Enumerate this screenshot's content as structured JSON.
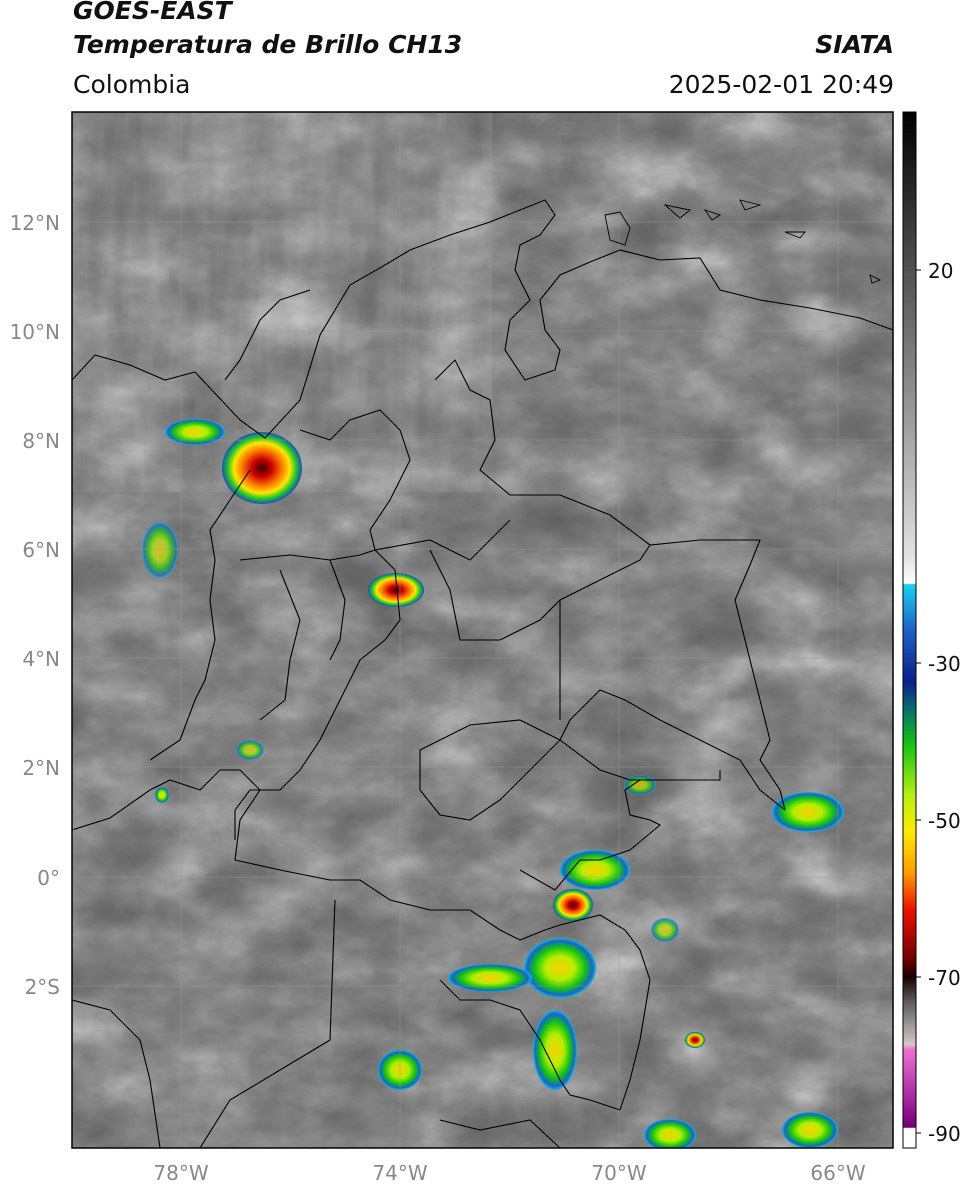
{
  "header": {
    "satellite": "GOES-EAST",
    "product": "Temperatura de Brillo CH13",
    "brand": "SIATA",
    "region": "Colombia",
    "timestamp": "2025-02-01 20:49"
  },
  "map": {
    "lat_ticks": [
      "12°N",
      "10°N",
      "8°N",
      "6°N",
      "4°N",
      "2°N",
      "0°",
      "2°S"
    ],
    "lon_ticks": [
      "78°W",
      "74°W",
      "70°W",
      "66°W"
    ]
  },
  "colorbar": {
    "tick_labels": [
      "20",
      "-30",
      "-50",
      "-70",
      "-90"
    ]
  },
  "colors": {
    "frame": "#000000",
    "cloud_warm": "#5a5a5a",
    "cloud_cold_grey": "#e6e6e6"
  }
}
